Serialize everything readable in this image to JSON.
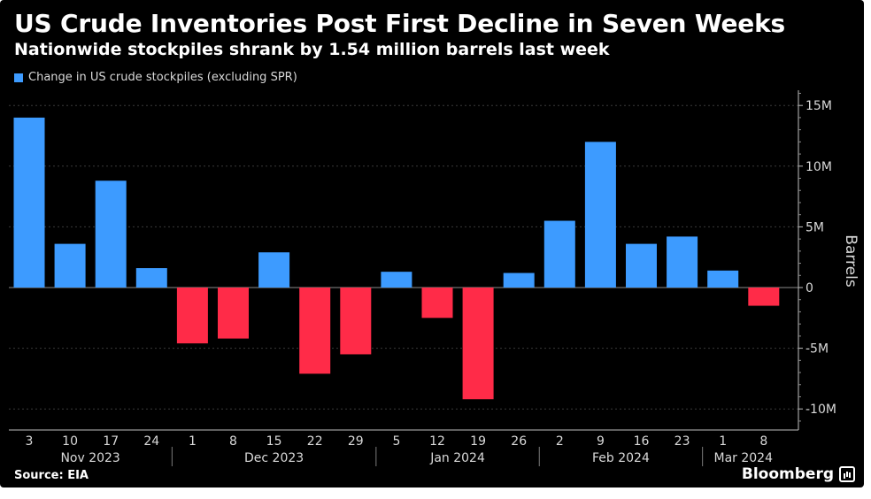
{
  "title": "US Crude Inventories Post First Decline in Seven Weeks",
  "subtitle": "Nationwide stockpiles shrank by 1.54 million barrels last week",
  "source": "Source: EIA",
  "brand": "Bloomberg",
  "chart_data": {
    "type": "bar",
    "legend": [
      {
        "label": "Change in US crude stockpiles (excluding SPR)",
        "color": "#3d9bff"
      }
    ],
    "positive_color": "#3d9bff",
    "negative_color": "#ff2b48",
    "categories": [
      "3",
      "10",
      "17",
      "24",
      "1",
      "8",
      "15",
      "22",
      "29",
      "5",
      "12",
      "19",
      "26",
      "2",
      "9",
      "16",
      "23",
      "1",
      "8"
    ],
    "values": [
      14.0,
      3.6,
      8.8,
      1.6,
      -4.6,
      -4.2,
      2.9,
      -7.1,
      -5.5,
      1.3,
      -2.5,
      -9.2,
      1.2,
      5.5,
      12.0,
      3.6,
      4.2,
      1.4,
      -1.5
    ],
    "months": [
      {
        "label": "Nov 2023",
        "from": 0,
        "to": 3
      },
      {
        "label": "Dec 2023",
        "from": 4,
        "to": 8
      },
      {
        "label": "Jan 2024",
        "from": 9,
        "to": 12
      },
      {
        "label": "Feb 2024",
        "from": 13,
        "to": 16
      },
      {
        "label": "Mar 2024",
        "from": 17,
        "to": 18
      }
    ],
    "y_ticks": [
      {
        "value": 15,
        "label": "15M"
      },
      {
        "value": 10,
        "label": "10M"
      },
      {
        "value": 5,
        "label": "5M"
      },
      {
        "value": 0,
        "label": "0"
      },
      {
        "value": -5,
        "label": "-5M"
      },
      {
        "value": -10,
        "label": "-10M"
      }
    ],
    "ylabel": "Barrels",
    "ylim": [
      -11.5,
      16.3
    ],
    "grid": true,
    "legend_position": "top-left",
    "units": "million barrels"
  }
}
